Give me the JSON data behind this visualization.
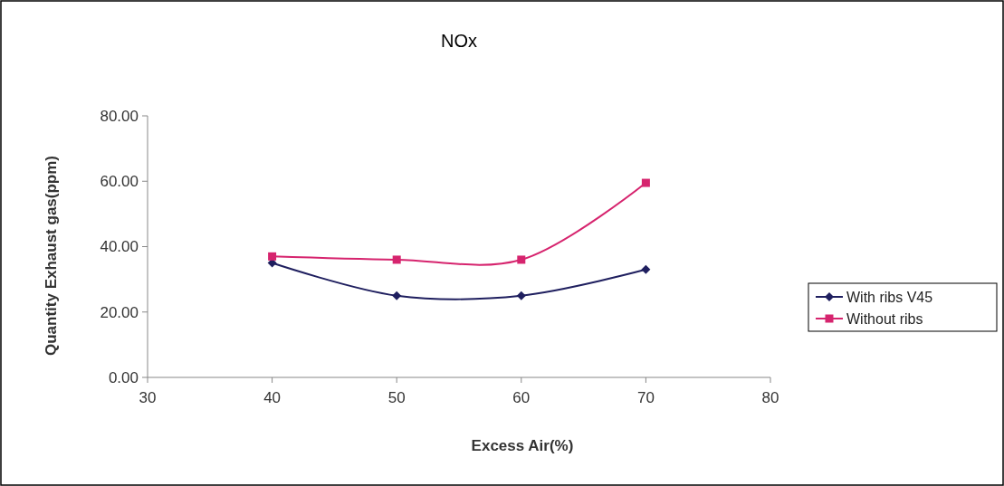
{
  "chart_data": {
    "type": "line",
    "title": "NOx",
    "xlabel": "Excess Air(%)",
    "ylabel": "Quantity Exhaust gas(ppm)",
    "x": [
      40,
      50,
      60,
      70
    ],
    "series": [
      {
        "name": "With ribs V45",
        "color": "#1f1f5f",
        "marker": "diamond",
        "values": [
          35,
          25,
          25,
          33
        ]
      },
      {
        "name": "Without ribs",
        "color": "#d6246e",
        "marker": "square",
        "values": [
          37,
          36,
          36,
          59.5
        ]
      }
    ],
    "xlim": [
      30,
      80
    ],
    "xticks": [
      30,
      40,
      50,
      60,
      70,
      80
    ],
    "ylim": [
      0,
      80
    ],
    "yticks": [
      {
        "value": 0,
        "label": "0.00"
      },
      {
        "value": 20,
        "label": "20.00"
      },
      {
        "value": 40,
        "label": "40.00"
      },
      {
        "value": 60,
        "label": "60.00"
      },
      {
        "value": 80,
        "label": "80.00"
      }
    ],
    "grid": false,
    "legend": "right"
  }
}
